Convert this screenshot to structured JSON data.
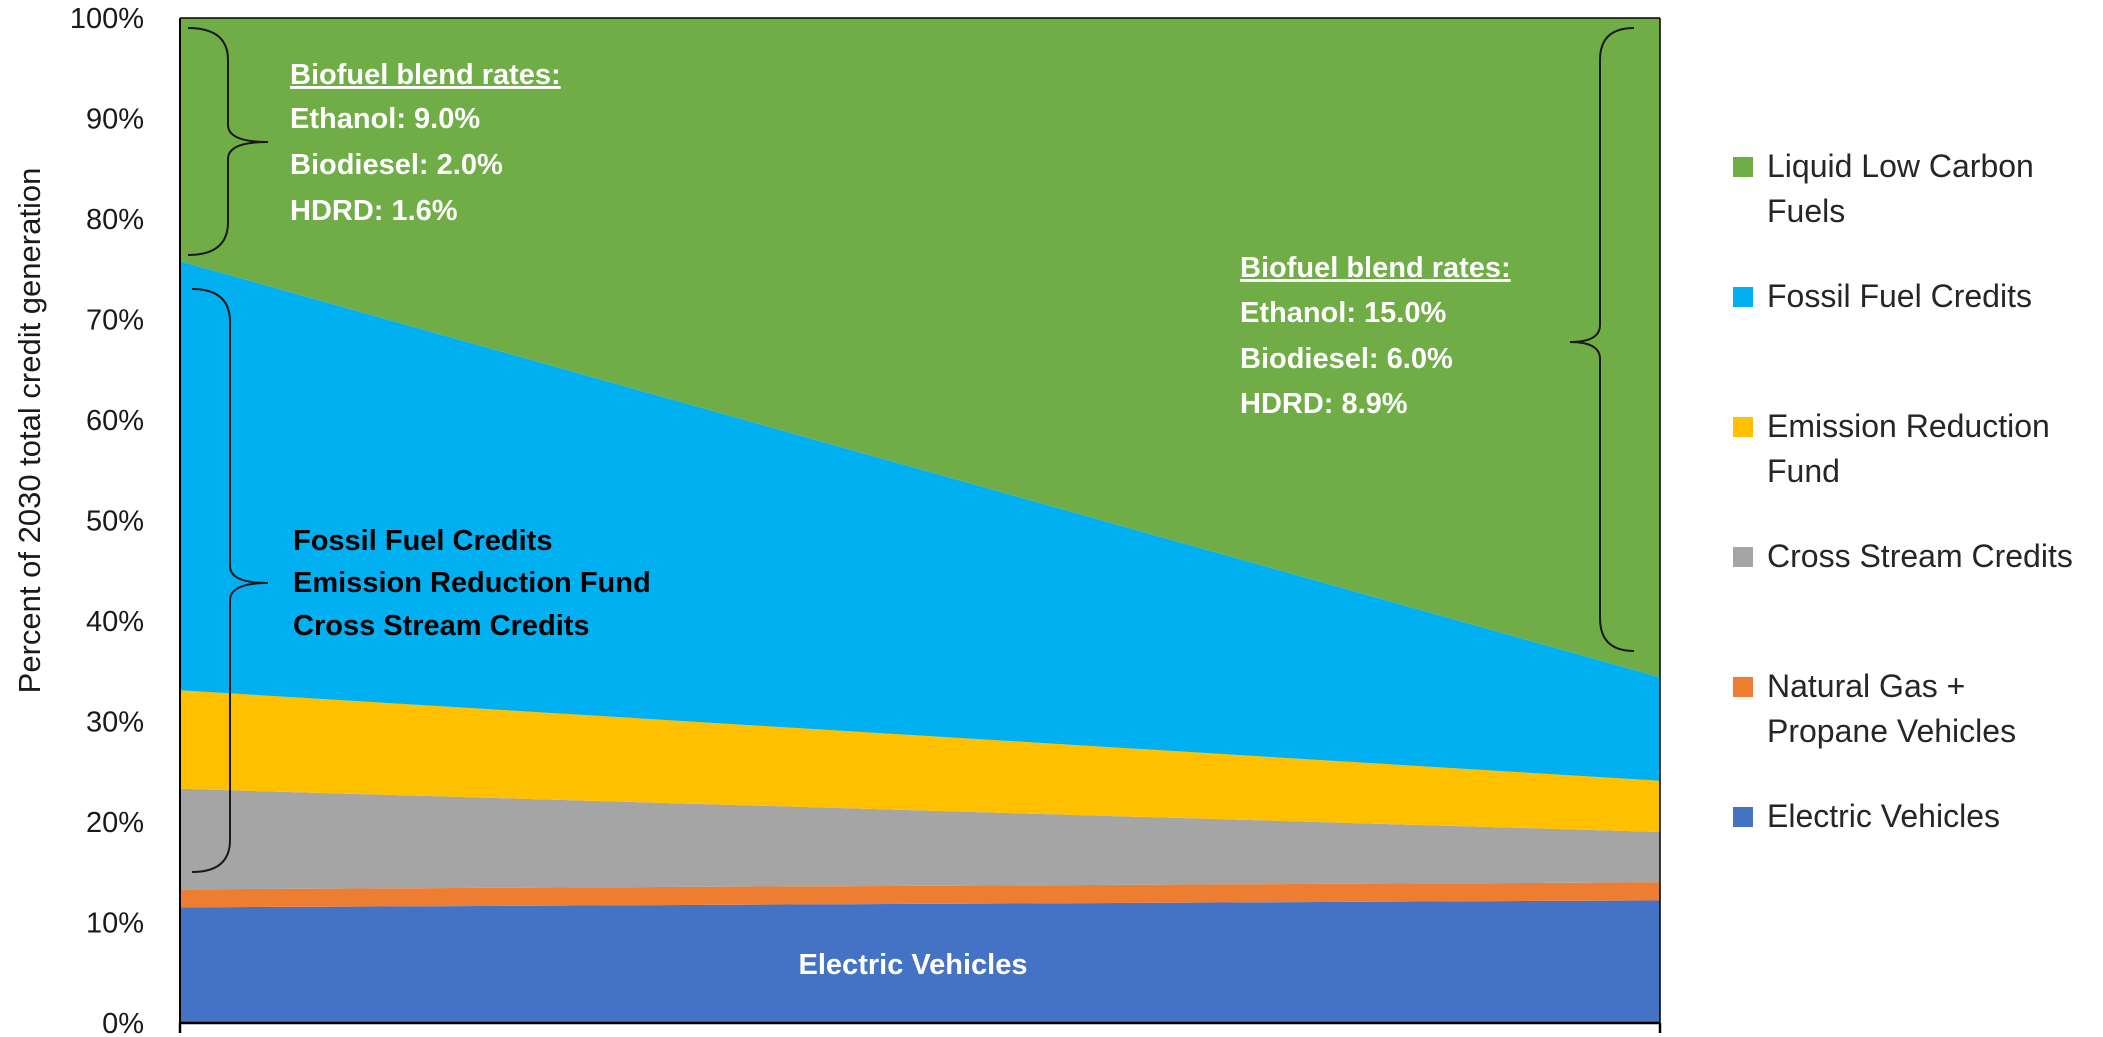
{
  "chart_data": {
    "type": "area",
    "stacked": true,
    "ylabel": "Percent of 2030 total credit generation",
    "xlabel": "",
    "ylim": [
      0,
      100
    ],
    "ytick_labels": [
      "0%",
      "10%",
      "20%",
      "30%",
      "40%",
      "50%",
      "60%",
      "70%",
      "80%",
      "90%",
      "100%"
    ],
    "x": [
      0,
      1
    ],
    "series": [
      {
        "name": "Electric Vehicles",
        "values": [
          11.5,
          12.2
        ],
        "color": "#4472C4"
      },
      {
        "name": "Natural Gas + Propane Vehicles",
        "values": [
          1.8,
          1.8
        ],
        "color": "#ED7D31"
      },
      {
        "name": "Cross Stream Credits",
        "values": [
          10.0,
          5.0
        ],
        "color": "#A5A5A5"
      },
      {
        "name": "Emission Reduction Fund",
        "values": [
          9.8,
          5.1
        ],
        "color": "#FFC000"
      },
      {
        "name": "Fossil Fuel Credits",
        "values": [
          42.7,
          10.3
        ],
        "color": "#00B0F0"
      },
      {
        "name": "Liquid Low Carbon Fuels",
        "values": [
          24.2,
          65.6
        ],
        "color": "#70AD47"
      }
    ],
    "legend": {
      "position": "right",
      "items": [
        {
          "label": "Liquid Low Carbon\nFuels",
          "color": "#70AD47"
        },
        {
          "label": "Fossil Fuel Credits",
          "color": "#00B0F0"
        },
        {
          "label": "Emission Reduction\nFund",
          "color": "#FFC000"
        },
        {
          "label": "Cross Stream Credits",
          "color": "#A5A5A5"
        },
        {
          "label": "Natural Gas +\nPropane Vehicles",
          "color": "#ED7D31"
        },
        {
          "label": "Electric Vehicles",
          "color": "#4472C4"
        }
      ]
    },
    "annotations": {
      "left_blend": {
        "title": "Biofuel blend rates:",
        "lines": [
          "Ethanol: 9.0%",
          "Biodiesel: 2.0%",
          "HDRD: 1.6%"
        ]
      },
      "right_blend": {
        "title": "Biofuel blend rates:",
        "lines": [
          "Ethanol: 15.0%",
          "Biodiesel: 6.0%",
          "HDRD: 8.9%"
        ]
      },
      "middle_group": {
        "lines": [
          "Fossil Fuel Credits",
          "Emission Reduction Fund",
          "Cross Stream Credits"
        ]
      },
      "ev_label": "Electric Vehicles"
    }
  }
}
